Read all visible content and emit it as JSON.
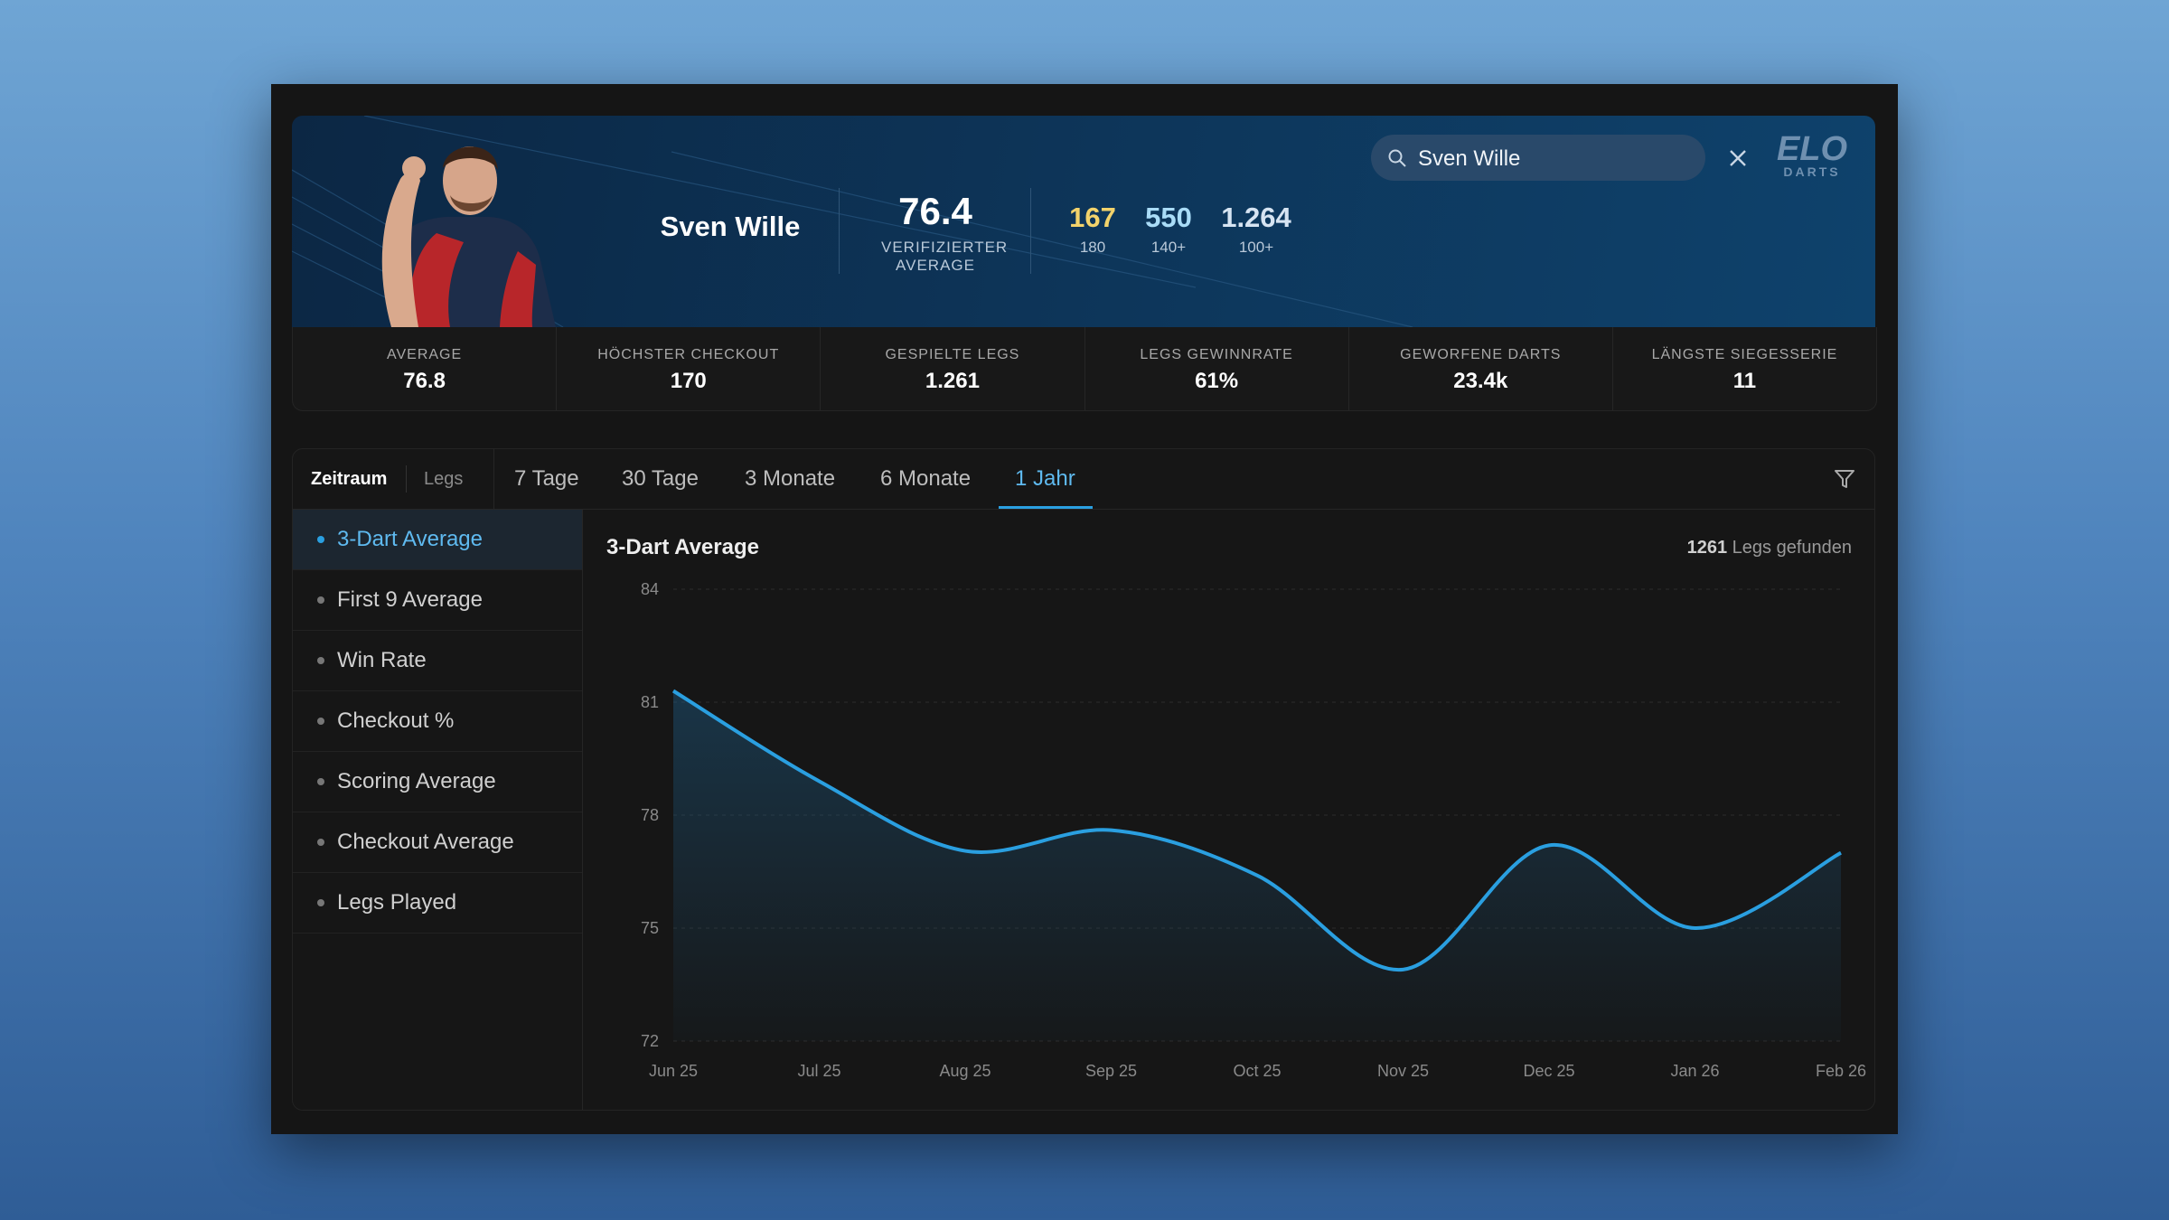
{
  "header": {
    "player_name": "Sven Wille",
    "average": {
      "value": "76.4",
      "label": "VERIFIZIERTER AVERAGE"
    },
    "counts": [
      {
        "value": "167",
        "label": "180",
        "color": "#f3d36b"
      },
      {
        "value": "550",
        "label": "140+",
        "color": "#a9dcf7"
      },
      {
        "value": "1.264",
        "label": "100+",
        "color": "#d6e4f2"
      }
    ],
    "search_query": "Sven Wille",
    "logo": {
      "top": "ELO",
      "bottom": "DARTS"
    }
  },
  "stats": [
    {
      "label": "AVERAGE",
      "value": "76.8"
    },
    {
      "label": "HÖCHSTER CHECKOUT",
      "value": "170"
    },
    {
      "label": "GESPIELTE LEGS",
      "value": "1.261"
    },
    {
      "label": "LEGS GEWINNRATE",
      "value": "61%"
    },
    {
      "label": "GEWORFENE DARTS",
      "value": "23.4k"
    },
    {
      "label": "LÄNGSTE SIEGESSERIE",
      "value": "11"
    }
  ],
  "filters": {
    "modes": [
      "Zeitraum",
      "Legs"
    ],
    "active_mode": 0,
    "periods": [
      "7 Tage",
      "30 Tage",
      "3 Monate",
      "6 Monate",
      "1 Jahr"
    ],
    "active_period": 4
  },
  "metrics": {
    "items": [
      "3-Dart Average",
      "First 9 Average",
      "Win Rate",
      "Checkout %",
      "Scoring Average",
      "Checkout Average",
      "Legs Played"
    ],
    "active": 0
  },
  "legs_found": {
    "count": "1261",
    "text": "Legs gefunden"
  },
  "chart_data": {
    "type": "line",
    "title": "3-Dart Average",
    "categories": [
      "Jun 25",
      "Jul 25",
      "Aug 25",
      "Sep 25",
      "Oct 25",
      "Nov 25",
      "Dec 25",
      "Jan 26",
      "Feb 26"
    ],
    "values": [
      81.3,
      78.9,
      77.05,
      77.6,
      76.4,
      73.9,
      77.2,
      75.0,
      77.0
    ],
    "color": "#2a9fe0",
    "ylim": [
      72,
      84
    ],
    "yticks": [
      72,
      75,
      78,
      81,
      84
    ],
    "grid": true
  }
}
